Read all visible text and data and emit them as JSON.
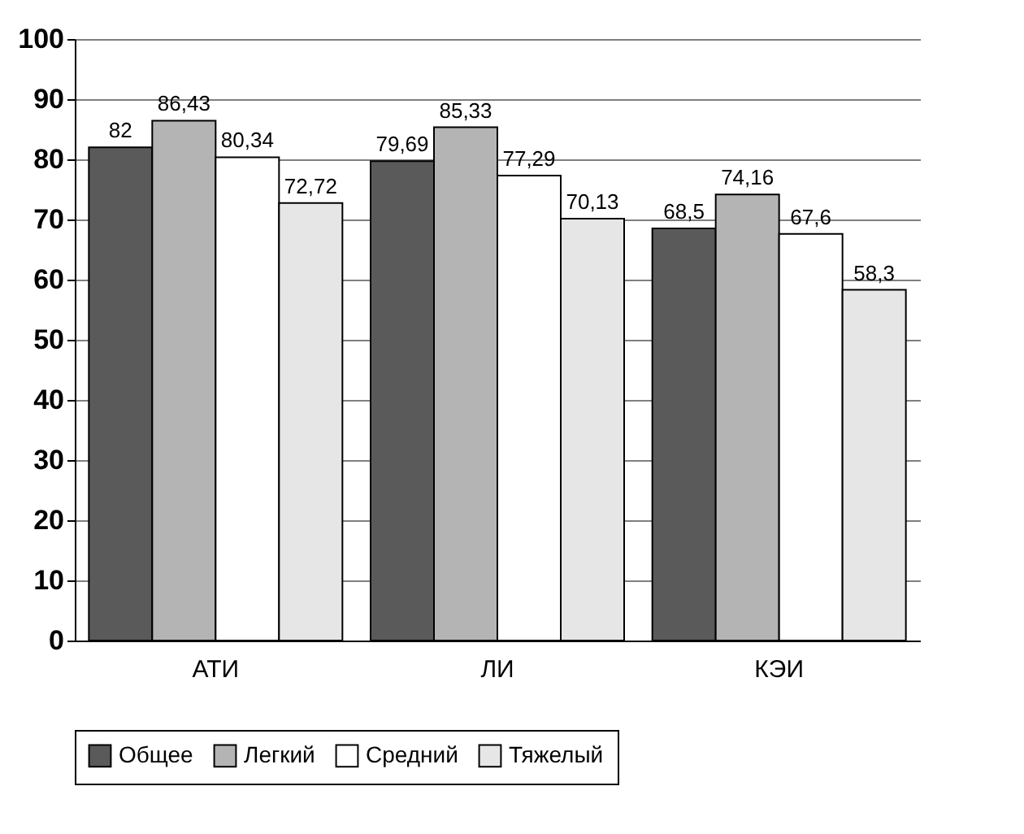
{
  "chart_data": {
    "type": "bar",
    "categories": [
      "АТИ",
      "ЛИ",
      "КЭИ"
    ],
    "series": [
      {
        "name": "Общее",
        "color": "#5a5a5a",
        "values": [
          82,
          79.69,
          68.5
        ],
        "value_labels": [
          "82",
          "79,69",
          "68,5"
        ]
      },
      {
        "name": "Легкий",
        "color": "#b4b4b4",
        "values": [
          86.43,
          85.33,
          74.16
        ],
        "value_labels": [
          "86,43",
          "85,33",
          "74,16"
        ]
      },
      {
        "name": "Средний",
        "color": "#ffffff",
        "values": [
          80.34,
          77.29,
          67.6
        ],
        "value_labels": [
          "80,34",
          "77,29",
          "67,6"
        ]
      },
      {
        "name": "Тяжелый",
        "color": "#e6e6e6",
        "values": [
          72.72,
          70.13,
          58.3
        ],
        "value_labels": [
          "72,72",
          "70,13",
          "58,3"
        ]
      }
    ],
    "ylim": [
      0,
      100
    ],
    "yticks": [
      0,
      10,
      20,
      30,
      40,
      50,
      60,
      70,
      80,
      90,
      100
    ],
    "grid": "y",
    "legend": "bottom"
  }
}
